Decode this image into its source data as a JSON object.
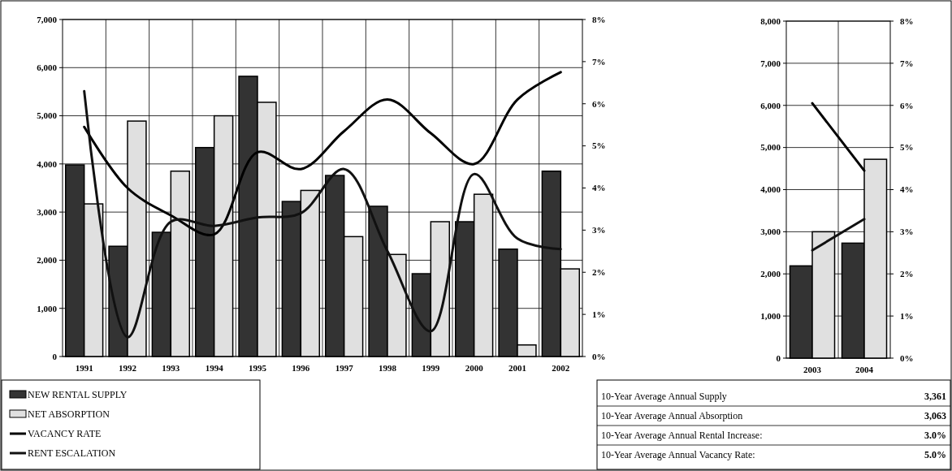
{
  "chart_data": [
    {
      "type": "bar",
      "categories": [
        "1991",
        "1992",
        "1993",
        "1994",
        "1995",
        "1996",
        "1997",
        "1998",
        "1999",
        "2000",
        "2001",
        "2002"
      ],
      "series": [
        {
          "name": "NEW RENTAL SUPPLY",
          "color": "#333333",
          "values": [
            3980,
            2290,
            2580,
            4340,
            5820,
            3220,
            3760,
            3120,
            1720,
            2800,
            2230,
            3850
          ]
        },
        {
          "name": "NET ABSORPTION",
          "color": "#e0e0e0",
          "values": [
            3170,
            4890,
            3850,
            5000,
            5280,
            3450,
            2490,
            2120,
            2800,
            3370,
            240,
            1820
          ]
        },
        {
          "name": "VACANCY RATE",
          "type": "line",
          "axis": "y2",
          "color": "#000000",
          "values": [
            5.45,
            4.0,
            3.35,
            2.9,
            4.85,
            4.45,
            5.35,
            6.1,
            5.3,
            4.57,
            6.1,
            6.75
          ]
        },
        {
          "name": "RENT ESCALATION",
          "type": "line",
          "axis": "y2",
          "color": "#111111",
          "values": [
            6.3,
            0.46,
            3.2,
            3.1,
            3.3,
            3.4,
            4.45,
            2.5,
            0.6,
            4.33,
            2.8,
            2.55
          ]
        }
      ],
      "ylim": [
        0,
        7000
      ],
      "yticks": [
        0,
        {
          "value": 1000,
          "label": "1,000"
        },
        {
          "value": 2000,
          "label": "2,000"
        },
        {
          "value": 3000,
          "label": "3,000"
        },
        {
          "value": 4000,
          "label": "4,000"
        },
        {
          "value": 5000,
          "label": "5,000"
        },
        {
          "value": 6000,
          "label": "6,000"
        },
        {
          "value": 7000,
          "label": "7,000"
        }
      ],
      "y2lim": [
        0,
        8
      ],
      "y2ticks": [
        {
          "value": 0,
          "label": "0%"
        },
        {
          "value": 1,
          "label": "1%"
        },
        {
          "value": 2,
          "label": "2%"
        },
        {
          "value": 3,
          "label": "3%"
        },
        {
          "value": 4,
          "label": "4%"
        },
        {
          "value": 5,
          "label": "5%"
        },
        {
          "value": 6,
          "label": "6%"
        },
        {
          "value": 7,
          "label": "7%"
        },
        {
          "value": 8,
          "label": "8%"
        }
      ],
      "grid": true,
      "legend": "bottom left",
      "annotations": [
        "10-Year Average Annual Supply",
        "3,361",
        "10-Year Average Annual Absorption",
        "3,063",
        "10-Year Average Annual Rental Increase:",
        "3.0%",
        "10-Year Average Annual Vacancy Rate:",
        "5.0%"
      ]
    },
    {
      "type": "bar",
      "categories": [
        "2003",
        "2004"
      ],
      "series": [
        {
          "color": "#333333",
          "values": [
            2190,
            2730
          ]
        },
        {
          "color": "#e0e0e0",
          "values": [
            3000,
            4720
          ]
        },
        {
          "type": "line",
          "axis": "y2",
          "color": "#000000",
          "values": [
            6.05,
            4.45
          ]
        },
        {
          "type": "line",
          "axis": "y2",
          "color": "#111111",
          "values": [
            2.56,
            3.3
          ]
        }
      ],
      "ylim": [
        0,
        8000
      ],
      "yticks": [
        0,
        {
          "value": 1000,
          "label": "1,000"
        },
        {
          "value": 2000,
          "label": "2,000"
        },
        {
          "value": 3000,
          "label": "3,000"
        },
        {
          "value": 4000,
          "label": "4,000"
        },
        {
          "value": 5000,
          "label": "5,000"
        },
        {
          "value": 6000,
          "label": "6,000"
        },
        {
          "value": 7000,
          "label": "7,000"
        },
        {
          "value": 8000,
          "label": "8,000"
        }
      ],
      "y2lim": [
        0,
        8
      ],
      "y2ticks": [
        {
          "value": 0,
          "label": "0%"
        },
        {
          "value": 1,
          "label": "1%"
        },
        {
          "value": 2,
          "label": "2%"
        },
        {
          "value": 3,
          "label": "3%"
        },
        {
          "value": 4,
          "label": "4%"
        },
        {
          "value": 5,
          "label": "5%"
        },
        {
          "value": 6,
          "label": "6%"
        },
        {
          "value": 7,
          "label": "7%"
        },
        {
          "value": 8,
          "label": "8%"
        }
      ],
      "grid": true
    }
  ]
}
